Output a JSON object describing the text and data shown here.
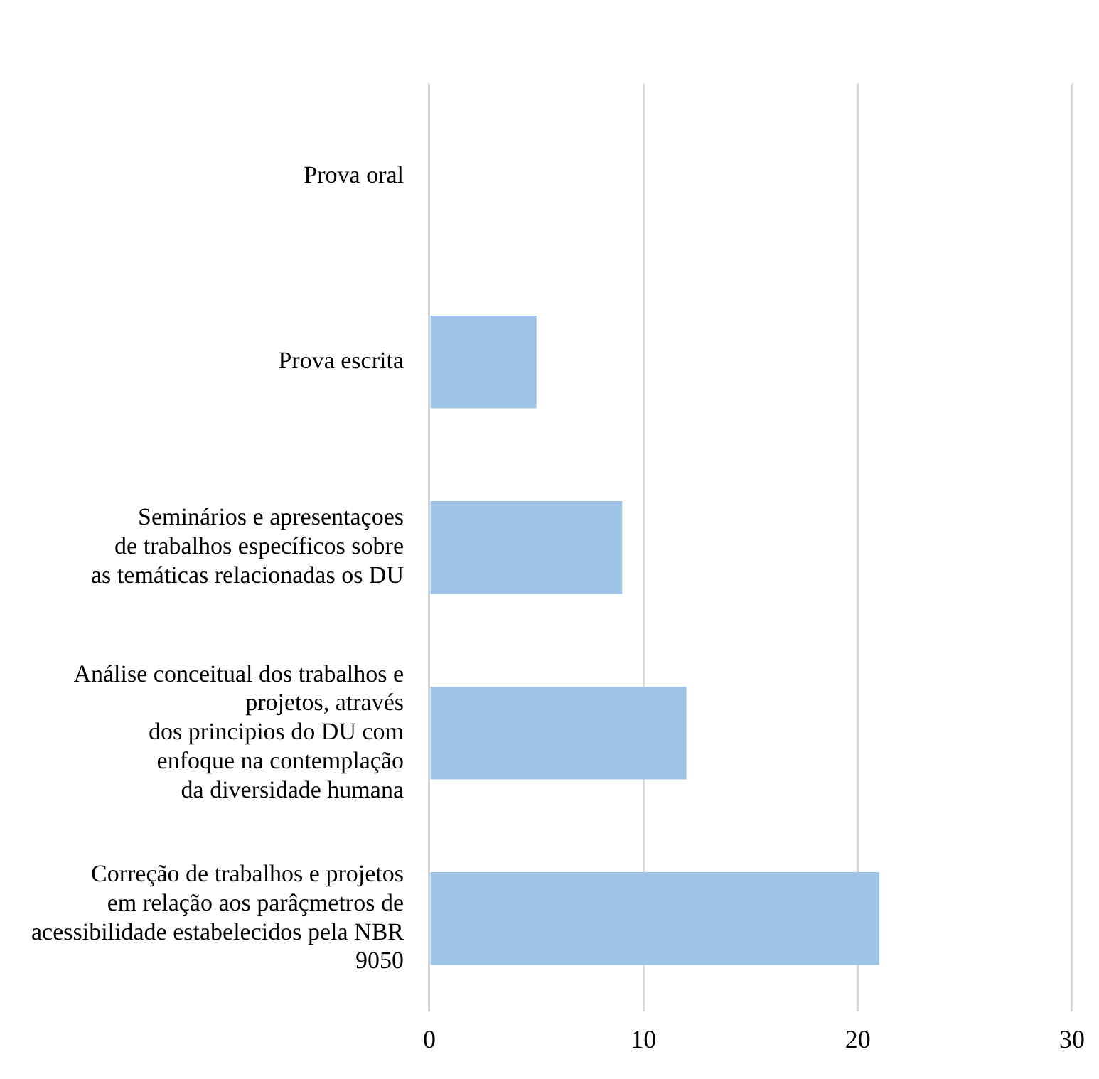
{
  "chart_data": {
    "type": "bar",
    "orientation": "horizontal",
    "categories": [
      "Prova oral",
      "Prova escrita",
      "Seminários e apresentaçoes\nde trabalhos específicos sobre\nas temáticas relacionadas os DU",
      "Análise conceitual dos trabalhos e\nprojetos, através\ndos principios do DU com\nenfoque na contemplação\nda diversidade humana",
      "Correção de trabalhos e projetos\nem relação aos parâçmetros de\nacessibilidade estabelecidos pela NBR\n9050"
    ],
    "values": [
      0,
      5,
      9,
      12,
      21
    ],
    "color": "#9dc3e6",
    "xlim": [
      0,
      30
    ],
    "xticks": [
      0,
      10,
      20,
      30
    ],
    "grid": "x",
    "legend": false
  }
}
